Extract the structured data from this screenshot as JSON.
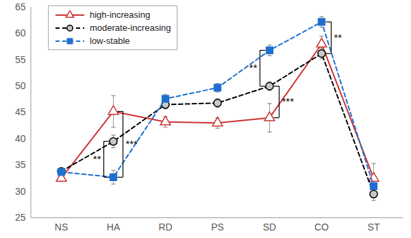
{
  "chart_data": {
    "type": "line",
    "categories": [
      "NS",
      "HA",
      "RD",
      "PS",
      "SD",
      "CO",
      "ST"
    ],
    "series": [
      {
        "name": "high-increasing",
        "color": "#cc3333",
        "marker": "triangle",
        "line_style": "solid",
        "values": [
          32.5,
          45.2,
          43.2,
          43.0,
          44.0,
          58.0,
          32.5
        ],
        "errors": [
          0.6,
          3.0,
          1.0,
          1.0,
          2.7,
          1.5,
          2.8
        ]
      },
      {
        "name": "moderate-increasing",
        "color": "#000000",
        "marker": "circle",
        "line_style": "dashed",
        "values": [
          33.8,
          39.5,
          46.5,
          46.8,
          50.0,
          56.2,
          29.5
        ],
        "errors": [
          0.5,
          1.2,
          0.8,
          0.8,
          0.8,
          1.0,
          1.2
        ]
      },
      {
        "name": "low-stable",
        "color": "#1f6fd0",
        "marker": "square",
        "line_style": "dashed",
        "values": [
          33.7,
          32.7,
          47.6,
          49.7,
          56.8,
          62.2,
          31.0
        ],
        "errors": [
          0.8,
          1.3,
          0.8,
          0.8,
          1.0,
          1.0,
          1.0
        ]
      }
    ],
    "ylim": [
      25,
      65
    ],
    "yticks": [
      25,
      30,
      35,
      40,
      45,
      50,
      55,
      60,
      65
    ],
    "legend": "top-left",
    "annotations": [
      {
        "category": "HA",
        "from": 39.5,
        "to": 32.7,
        "label": "**",
        "side": "left"
      },
      {
        "category": "HA",
        "from": 45.2,
        "to": 32.7,
        "label": "***",
        "side": "right"
      },
      {
        "category": "SD",
        "from": 56.8,
        "to": 50.0,
        "label": "**",
        "side": "left"
      },
      {
        "category": "SD",
        "from": 50.0,
        "to": 44.0,
        "label": "***",
        "side": "right"
      },
      {
        "category": "CO",
        "from": 62.2,
        "to": 56.2,
        "label": "**",
        "side": "right"
      }
    ]
  }
}
